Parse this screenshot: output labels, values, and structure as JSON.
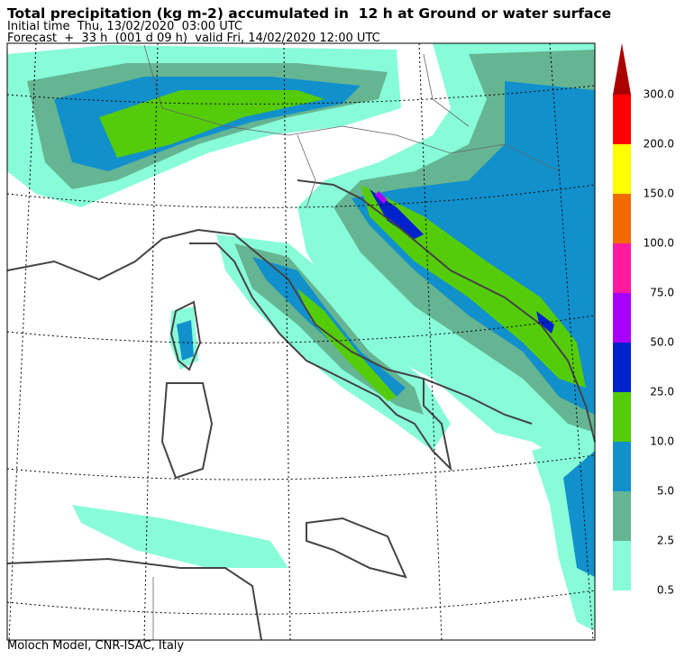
{
  "header": {
    "title": "Total precipitation (kg m-2) accumulated in  12 h at Ground or water surface",
    "initial_time": "Initial time  Thu, 13/02/2020  03:00 UTC",
    "forecast": "Forecast  +  33 h  (001 d 09 h)  valid Fri, 14/02/2020 12:00 UTC"
  },
  "colorbar": {
    "levels": [
      0.5,
      2.5,
      {
        "value": 5,
        "label": "5.0"
      },
      {
        "value": 10,
        "label": "10.0"
      },
      {
        "value": 25,
        "label": "25.0"
      },
      {
        "value": 50,
        "label": "50.0"
      },
      {
        "value": 75,
        "label": "75.0"
      },
      {
        "value": 100,
        "label": "100.0"
      },
      {
        "value": 150,
        "label": "150.0"
      },
      {
        "value": 200,
        "label": "200.0"
      },
      {
        "value": 300,
        "label": "300.0"
      }
    ],
    "colors": [
      "#88fcd8",
      "#66b592",
      "#1190cc",
      "#55cc0a",
      "#0022cc",
      "#a800ff",
      "#ff1aa0",
      "#f06a00",
      "#ffff00",
      "#ff0000",
      "#aa0000"
    ]
  },
  "footer": "Moloch Model, CNR-ISAC, Italy"
}
